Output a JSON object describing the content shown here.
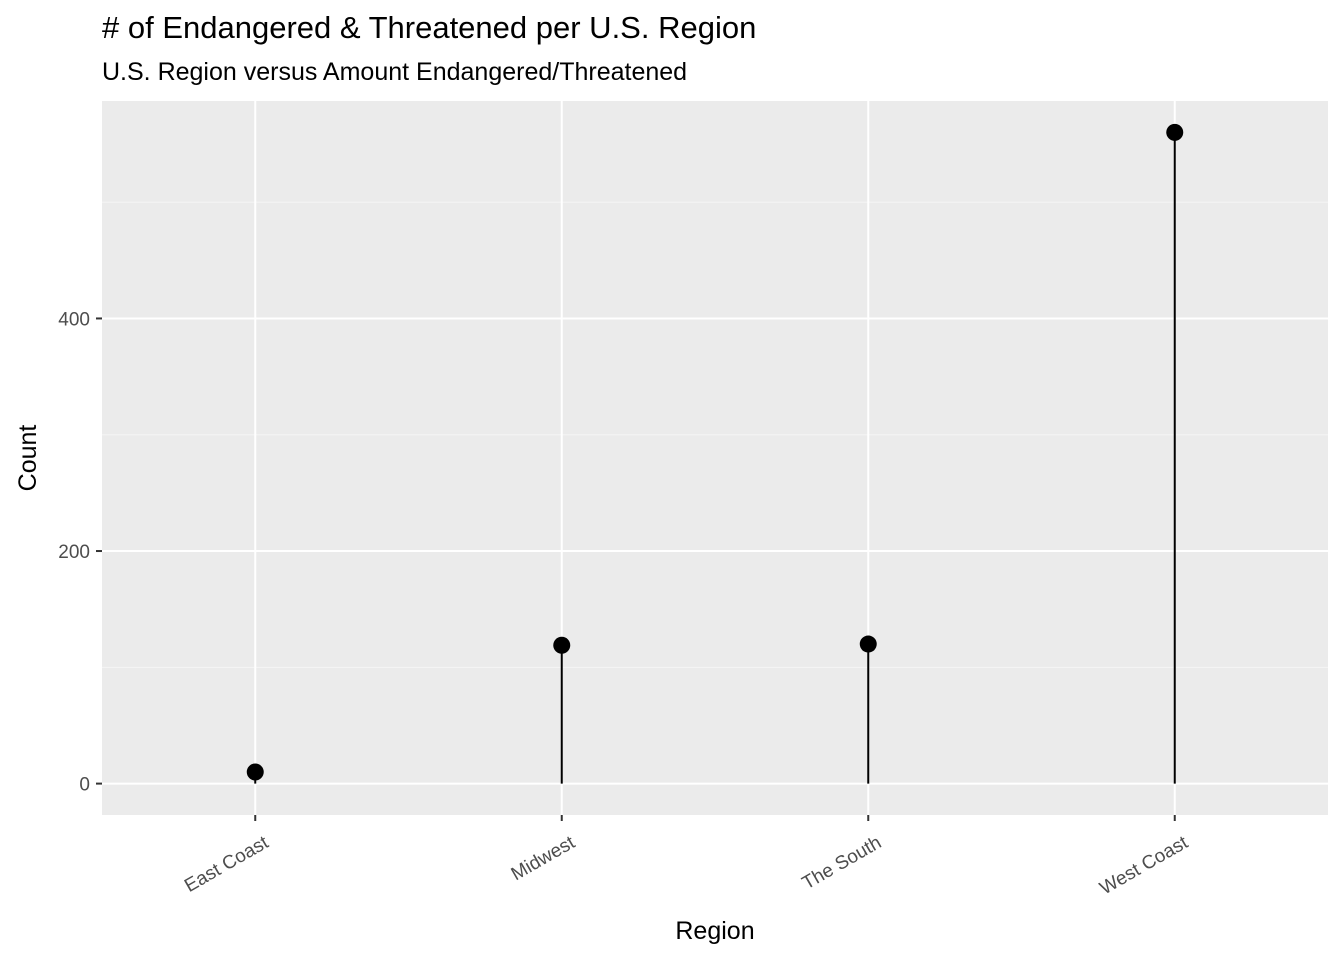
{
  "title": "# of Endangered & Threatened per U.S. Region",
  "subtitle": "U.S. Region versus Amount Endangered/Threatened",
  "colors": {
    "panel_background": "#ebebeb",
    "grid_major": "#ffffff",
    "grid_minor": "#f5f5f5",
    "mark": "#000000",
    "tick_text": "#4d4d4d"
  },
  "chart_data": {
    "type": "lollipop",
    "categories": [
      "East Coast",
      "Midwest",
      "The South",
      "West Coast"
    ],
    "values": [
      10,
      119,
      120,
      560
    ],
    "xlabel": "Region",
    "ylabel": "Count",
    "yticks": [
      0,
      200,
      400
    ],
    "ylim": [
      -27,
      587
    ],
    "grid": true,
    "legend": "none"
  }
}
